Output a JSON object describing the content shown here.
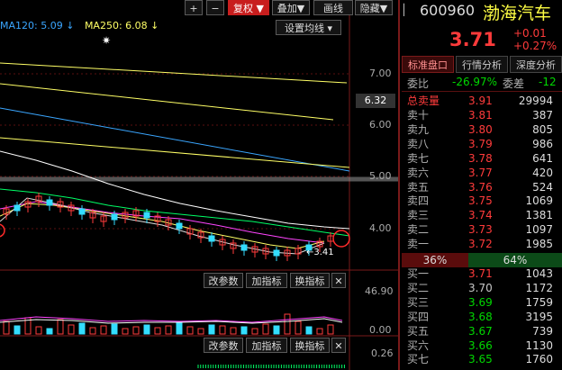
{
  "toolbar": {
    "add_label": "+",
    "minus_label": "−",
    "restore_label": "复权",
    "overlay_label": "叠加",
    "draw_label": "画线",
    "hide_label": "隐藏",
    "ma_settings_label": "设置均线"
  },
  "indicators": {
    "ma120": "MA120: 5.09",
    "ma250": "MA250: 6.08",
    "ma120_color": "#3aa6ff",
    "ma250_color": "#ffff66"
  },
  "price_axis": {
    "labels": [
      "7.00",
      "6.00",
      "5.00",
      "4.00"
    ],
    "current": "6.32",
    "low_marker": "3.41",
    "volume_max": "46.90",
    "volume_zero": "0.00",
    "macd_top": "0.26"
  },
  "panel_buttons": {
    "param": "改参数",
    "add_indicator": "加指标",
    "switch_indicator": "换指标",
    "close": "✕"
  },
  "stock": {
    "code": "600960",
    "name": "渤海汽车",
    "price": "3.71",
    "change": "+0.01",
    "change_pct": "+0.27%"
  },
  "tabs": {
    "quote": "标准盘口",
    "analysis": "行情分析",
    "depth": "深度分析"
  },
  "summary": {
    "weibi_label": "委比",
    "weibi_value": "-26.97%",
    "weicha_label": "委差",
    "weicha_value": "-12",
    "total_label": "总卖量",
    "total_price": "3.91",
    "total_vol": "29994"
  },
  "sell": [
    {
      "label": "卖十",
      "price": "3.81",
      "vol": "387"
    },
    {
      "label": "卖九",
      "price": "3.80",
      "vol": "805"
    },
    {
      "label": "卖八",
      "price": "3.79",
      "vol": "986"
    },
    {
      "label": "卖七",
      "price": "3.78",
      "vol": "641"
    },
    {
      "label": "卖六",
      "price": "3.77",
      "vol": "420"
    },
    {
      "label": "卖五",
      "price": "3.76",
      "vol": "524"
    },
    {
      "label": "卖四",
      "price": "3.75",
      "vol": "1069"
    },
    {
      "label": "卖三",
      "price": "3.74",
      "vol": "1381"
    },
    {
      "label": "卖二",
      "price": "3.73",
      "vol": "1097"
    },
    {
      "label": "卖一",
      "price": "3.72",
      "vol": "1985"
    }
  ],
  "ratio": {
    "left": "36%",
    "right": "64%"
  },
  "buy": [
    {
      "label": "买一",
      "price": "3.71",
      "vol": "1043"
    },
    {
      "label": "买二",
      "price": "3.70",
      "vol": "1172"
    },
    {
      "label": "买三",
      "price": "3.69",
      "vol": "1759"
    },
    {
      "label": "买四",
      "price": "3.68",
      "vol": "3195"
    },
    {
      "label": "买五",
      "price": "3.67",
      "vol": "739"
    },
    {
      "label": "买六",
      "price": "3.66",
      "vol": "1130"
    },
    {
      "label": "买七",
      "price": "3.65",
      "vol": "1760"
    }
  ]
}
